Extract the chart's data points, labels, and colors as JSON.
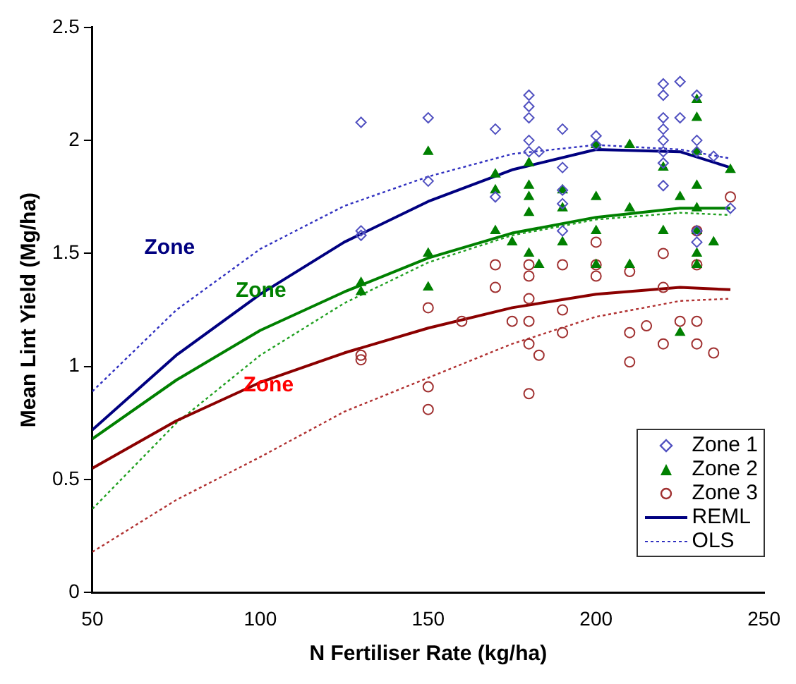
{
  "chart_data": {
    "type": "scatter",
    "xlabel": "N Fertiliser Rate (kg/ha)",
    "ylabel": "Mean Lint Yield (Mg/ha)",
    "xlim": [
      50,
      250
    ],
    "xticks": [
      50,
      100,
      150,
      200,
      250
    ],
    "ylim": [
      0,
      2.5
    ],
    "yticks": [
      0,
      0.5,
      1,
      1.5,
      2,
      2.5
    ],
    "grid": false,
    "legend": "bottom right",
    "annotations": [
      "Zone",
      "Zone",
      "Zone"
    ],
    "series": [
      {
        "name": "Zone 1",
        "type": "scatter",
        "marker": "diamond",
        "color": "#5050c0",
        "x": [
          130,
          130,
          130,
          150,
          150,
          170,
          170,
          180,
          180,
          180,
          180,
          180,
          183,
          190,
          190,
          190,
          190,
          190,
          200,
          200,
          220,
          220,
          220,
          220,
          220,
          220,
          220,
          220,
          225,
          225,
          230,
          230,
          230,
          230,
          230,
          235,
          240
        ],
        "values": [
          2.08,
          1.6,
          1.58,
          2.1,
          1.82,
          2.05,
          1.75,
          2.2,
          2.15,
          2.1,
          2.0,
          1.95,
          1.95,
          2.05,
          1.88,
          1.78,
          1.72,
          1.6,
          2.02,
          1.98,
          2.25,
          2.2,
          2.1,
          2.05,
          2.0,
          1.95,
          1.9,
          1.8,
          2.26,
          2.1,
          2.2,
          2.0,
          1.95,
          1.6,
          1.55,
          1.93,
          1.7
        ]
      },
      {
        "name": "Zone 2",
        "type": "scatter",
        "marker": "triangle",
        "color": "#008000",
        "x": [
          130,
          130,
          150,
          150,
          150,
          170,
          170,
          170,
          175,
          180,
          180,
          180,
          180,
          180,
          183,
          190,
          190,
          190,
          200,
          200,
          200,
          200,
          210,
          210,
          210,
          220,
          220,
          225,
          225,
          230,
          230,
          230,
          230,
          230,
          230,
          230,
          230,
          235,
          240
        ],
        "values": [
          1.37,
          1.33,
          1.95,
          1.5,
          1.35,
          1.85,
          1.78,
          1.6,
          1.55,
          1.9,
          1.8,
          1.75,
          1.68,
          1.5,
          1.45,
          1.78,
          1.7,
          1.55,
          1.98,
          1.75,
          1.6,
          1.45,
          1.98,
          1.7,
          1.45,
          1.88,
          1.6,
          1.75,
          1.15,
          2.18,
          2.1,
          1.95,
          1.8,
          1.7,
          1.6,
          1.5,
          1.45,
          1.55,
          1.87
        ]
      },
      {
        "name": "Zone 3",
        "type": "scatter",
        "marker": "circle",
        "color": "#a03030",
        "x": [
          130,
          130,
          150,
          150,
          150,
          160,
          170,
          170,
          175,
          180,
          180,
          180,
          180,
          180,
          183,
          180,
          190,
          190,
          190,
          200,
          200,
          200,
          210,
          210,
          210,
          215,
          220,
          220,
          220,
          225,
          230,
          230,
          230,
          230,
          235,
          240
        ],
        "values": [
          1.05,
          1.03,
          0.91,
          0.81,
          1.26,
          1.2,
          1.45,
          1.35,
          1.2,
          1.45,
          1.4,
          1.3,
          1.2,
          1.1,
          1.05,
          0.88,
          1.25,
          1.15,
          1.45,
          1.55,
          1.45,
          1.4,
          1.42,
          1.15,
          1.02,
          1.18,
          1.5,
          1.35,
          1.1,
          1.2,
          1.6,
          1.45,
          1.2,
          1.1,
          1.06,
          1.75
        ]
      },
      {
        "name": "REML",
        "type": "line",
        "marker": "none",
        "line_style": "solid",
        "color": "#000080",
        "x": [
          50,
          75,
          100,
          125,
          150,
          175,
          200,
          225,
          240
        ],
        "values": [
          0.72,
          1.05,
          1.32,
          1.55,
          1.73,
          1.87,
          1.96,
          1.95,
          1.88
        ]
      },
      {
        "type": "line",
        "marker": "none",
        "line_style": "solid",
        "color": "#008000",
        "x": [
          50,
          75,
          100,
          125,
          150,
          175,
          200,
          225,
          240
        ],
        "values": [
          0.68,
          0.94,
          1.16,
          1.33,
          1.48,
          1.59,
          1.66,
          1.7,
          1.7
        ]
      },
      {
        "type": "line",
        "marker": "none",
        "line_style": "solid",
        "color": "#8b0000",
        "x": [
          50,
          75,
          100,
          125,
          150,
          175,
          200,
          225,
          240
        ],
        "values": [
          0.55,
          0.76,
          0.93,
          1.06,
          1.17,
          1.26,
          1.32,
          1.35,
          1.34
        ]
      },
      {
        "name": "OLS",
        "type": "line",
        "marker": "none",
        "line_style": "dotted",
        "color": "#3030c0",
        "x": [
          50,
          75,
          100,
          125,
          150,
          175,
          200,
          225,
          240
        ],
        "values": [
          0.89,
          1.25,
          1.52,
          1.71,
          1.84,
          1.94,
          1.98,
          1.96,
          1.92
        ]
      },
      {
        "type": "line",
        "marker": "none",
        "line_style": "dotted",
        "color": "#20a020",
        "x": [
          50,
          75,
          100,
          125,
          150,
          175,
          200,
          225,
          240
        ],
        "values": [
          0.37,
          0.75,
          1.05,
          1.28,
          1.46,
          1.58,
          1.65,
          1.68,
          1.67
        ]
      },
      {
        "type": "line",
        "marker": "none",
        "line_style": "dotted",
        "color": "#b03030",
        "x": [
          50,
          75,
          100,
          125,
          150,
          175,
          200,
          225,
          240
        ],
        "values": [
          0.18,
          0.41,
          0.6,
          0.8,
          0.95,
          1.1,
          1.22,
          1.29,
          1.3
        ]
      }
    ]
  }
}
